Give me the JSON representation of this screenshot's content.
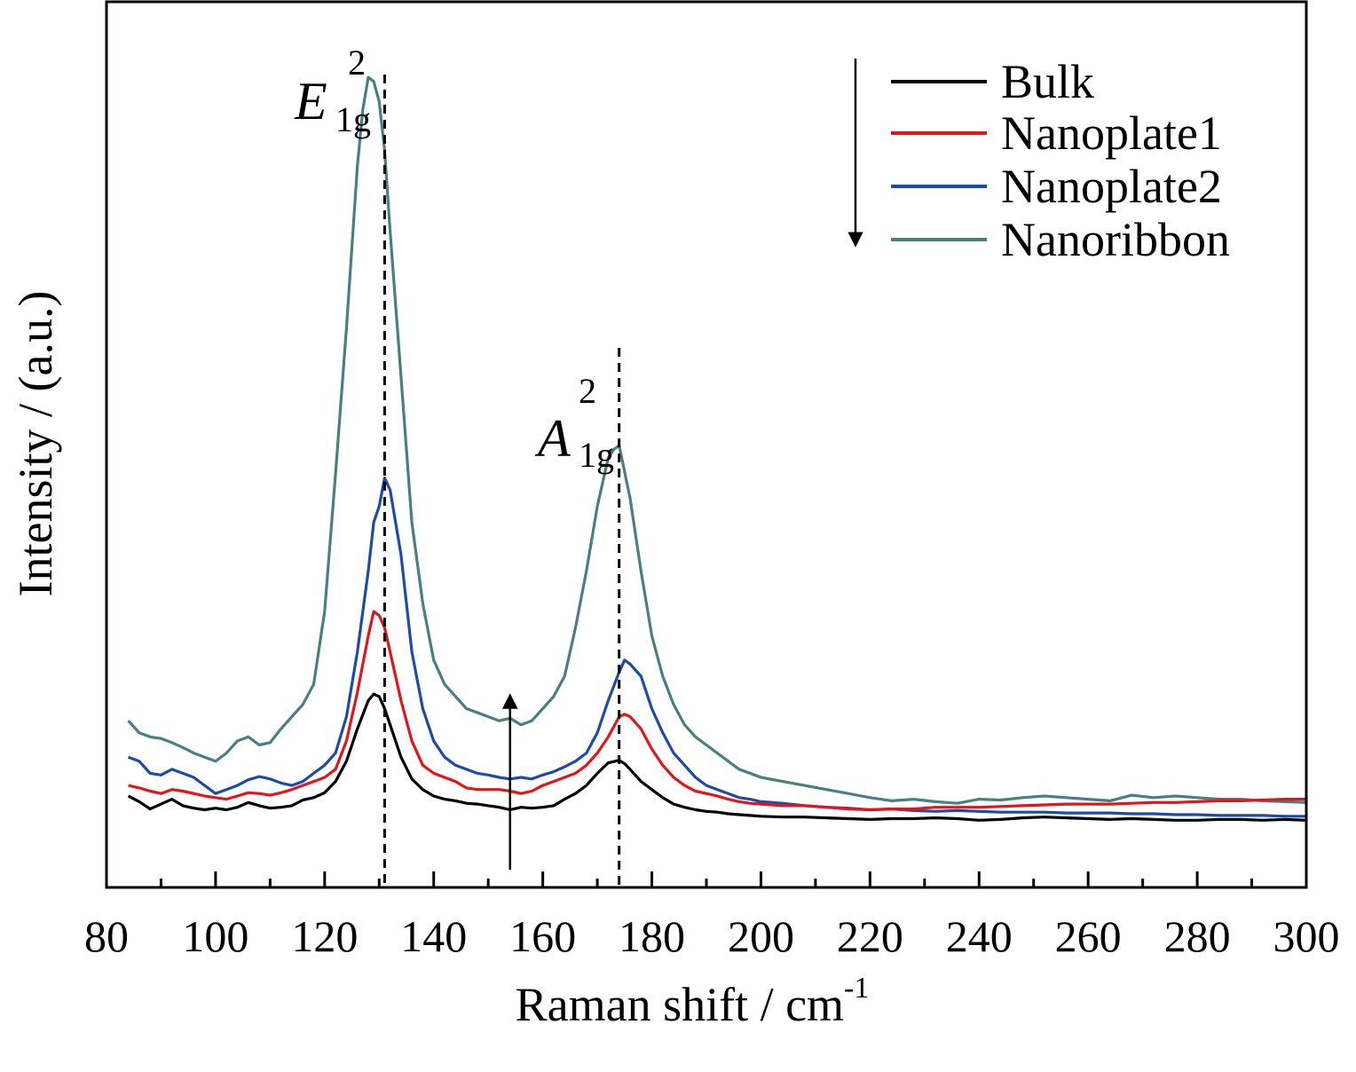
{
  "chart_data": {
    "type": "line",
    "xlabel": "Raman shift / cm",
    "xlabel_superscript": "-1",
    "ylabel": "Intensity / (a.u.)",
    "xlim": [
      80,
      300
    ],
    "ylim": [
      0,
      100
    ],
    "x_ticks": [
      80,
      100,
      120,
      140,
      160,
      180,
      200,
      220,
      240,
      260,
      280,
      300
    ],
    "y_ticks_shown": false,
    "grid": false,
    "legend_position": "top-right",
    "series": [
      {
        "name": "Bulk",
        "color": "#000000",
        "x": [
          84,
          86,
          88,
          90,
          92,
          94,
          96,
          98,
          100,
          102,
          104,
          106,
          108,
          110,
          112,
          114,
          116,
          118,
          120,
          122,
          124,
          126,
          128,
          129,
          130,
          131,
          132,
          134,
          136,
          138,
          140,
          142,
          144,
          146,
          148,
          150,
          152,
          154,
          156,
          158,
          160,
          162,
          164,
          166,
          168,
          170,
          172,
          174,
          175,
          176,
          178,
          180,
          182,
          184,
          186,
          188,
          190,
          192,
          194,
          196,
          198,
          200,
          204,
          208,
          212,
          216,
          220,
          224,
          228,
          232,
          236,
          240,
          244,
          248,
          252,
          256,
          260,
          264,
          268,
          272,
          276,
          280,
          284,
          288,
          292,
          296,
          300
        ],
        "y": [
          10.2,
          9.5,
          8.6,
          9.2,
          9.8,
          9.0,
          8.7,
          8.5,
          8.7,
          8.5,
          8.8,
          9.4,
          9.0,
          8.7,
          8.8,
          9.0,
          9.7,
          10.0,
          10.6,
          12.0,
          14.5,
          18.5,
          22.0,
          22.8,
          22.5,
          21.0,
          19.0,
          15.0,
          12.3,
          11.0,
          10.2,
          9.8,
          9.6,
          9.3,
          9.2,
          9.0,
          8.8,
          8.5,
          8.8,
          8.7,
          8.8,
          9.0,
          9.8,
          10.5,
          11.5,
          13.0,
          14.3,
          14.6,
          14.2,
          13.5,
          12.0,
          11.0,
          10.0,
          9.2,
          8.8,
          8.5,
          8.3,
          8.2,
          8.0,
          7.9,
          7.8,
          7.7,
          7.6,
          7.6,
          7.5,
          7.4,
          7.3,
          7.4,
          7.4,
          7.5,
          7.4,
          7.2,
          7.3,
          7.5,
          7.6,
          7.5,
          7.4,
          7.3,
          7.4,
          7.3,
          7.2,
          7.2,
          7.3,
          7.3,
          7.2,
          7.3,
          7.2
        ]
      },
      {
        "name": "Nanoplate1",
        "color": "#e0161b",
        "x": [
          84,
          86,
          88,
          90,
          92,
          94,
          96,
          98,
          100,
          102,
          104,
          106,
          108,
          110,
          112,
          114,
          116,
          118,
          120,
          122,
          124,
          126,
          128,
          129,
          130,
          131,
          132,
          134,
          136,
          138,
          140,
          142,
          144,
          146,
          148,
          150,
          152,
          154,
          156,
          158,
          160,
          162,
          164,
          166,
          168,
          170,
          172,
          174,
          175,
          176,
          178,
          180,
          182,
          184,
          186,
          188,
          190,
          192,
          194,
          196,
          198,
          200,
          204,
          208,
          212,
          216,
          220,
          224,
          228,
          232,
          236,
          240,
          244,
          248,
          252,
          256,
          260,
          264,
          268,
          272,
          276,
          280,
          284,
          288,
          292,
          296,
          300
        ],
        "y": [
          11.5,
          11.2,
          10.8,
          10.5,
          11.0,
          10.8,
          10.5,
          10.2,
          10.0,
          9.8,
          10.2,
          10.6,
          10.5,
          10.3,
          10.6,
          11.0,
          11.5,
          12.0,
          12.5,
          13.5,
          17.0,
          23.0,
          30.0,
          33.0,
          32.5,
          31.0,
          28.0,
          22.0,
          17.0,
          14.0,
          13.0,
          12.5,
          12.0,
          11.2,
          11.0,
          11.0,
          11.0,
          10.8,
          10.5,
          10.8,
          11.5,
          12.0,
          12.5,
          13.0,
          14.0,
          15.5,
          17.5,
          20.0,
          20.3,
          20.0,
          18.5,
          16.0,
          14.0,
          12.5,
          11.5,
          10.8,
          10.5,
          10.2,
          9.8,
          9.5,
          9.3,
          9.2,
          9.0,
          9.0,
          8.8,
          8.6,
          8.5,
          8.6,
          8.6,
          8.8,
          8.8,
          8.8,
          8.9,
          9.0,
          9.1,
          9.2,
          9.2,
          9.2,
          9.3,
          9.4,
          9.4,
          9.5,
          9.6,
          9.6,
          9.7,
          9.8,
          9.8
        ]
      },
      {
        "name": "Nanoplate2",
        "color": "#1f4aa5",
        "x": [
          84,
          86,
          88,
          90,
          92,
          94,
          96,
          98,
          100,
          102,
          104,
          106,
          108,
          110,
          112,
          114,
          116,
          118,
          120,
          122,
          124,
          126,
          128,
          129,
          130,
          131,
          132,
          134,
          136,
          138,
          140,
          142,
          144,
          146,
          148,
          150,
          152,
          154,
          156,
          158,
          160,
          162,
          164,
          166,
          168,
          170,
          172,
          174,
          175,
          176,
          178,
          180,
          182,
          184,
          186,
          188,
          190,
          192,
          194,
          196,
          198,
          200,
          204,
          208,
          212,
          216,
          220,
          224,
          228,
          232,
          236,
          240,
          244,
          248,
          252,
          256,
          260,
          264,
          268,
          272,
          276,
          280,
          284,
          288,
          292,
          296,
          300
        ],
        "y": [
          15.0,
          14.5,
          13.0,
          12.8,
          13.5,
          13.0,
          12.5,
          11.5,
          10.5,
          11.0,
          11.5,
          12.2,
          12.6,
          12.3,
          11.8,
          11.5,
          12.0,
          13.0,
          14.0,
          15.5,
          20.0,
          28.0,
          38.0,
          44.0,
          46.0,
          49.5,
          48.0,
          40.0,
          28.0,
          21.0,
          17.0,
          15.0,
          14.0,
          13.5,
          13.0,
          12.8,
          12.5,
          12.3,
          12.5,
          12.3,
          12.8,
          13.2,
          13.8,
          14.5,
          15.5,
          18.0,
          22.0,
          25.5,
          27.0,
          26.5,
          25.0,
          21.0,
          18.0,
          15.5,
          14.0,
          12.5,
          11.5,
          11.0,
          10.5,
          10.0,
          9.8,
          9.5,
          9.3,
          9.0,
          8.8,
          8.7,
          8.5,
          8.6,
          8.4,
          8.3,
          8.4,
          8.3,
          8.2,
          8.2,
          8.2,
          8.1,
          8.1,
          8.1,
          8.0,
          8.0,
          7.9,
          7.9,
          7.8,
          7.8,
          7.8,
          7.7,
          7.7
        ]
      },
      {
        "name": "Nanoribbon",
        "color": "#4a7f80",
        "x": [
          84,
          86,
          88,
          90,
          92,
          94,
          96,
          98,
          100,
          102,
          104,
          106,
          108,
          110,
          112,
          114,
          116,
          118,
          120,
          122,
          124,
          126,
          127,
          128,
          129,
          130,
          131,
          132,
          134,
          136,
          138,
          140,
          142,
          144,
          146,
          148,
          150,
          152,
          154,
          156,
          158,
          160,
          162,
          164,
          166,
          168,
          170,
          172,
          173,
          174,
          176,
          178,
          180,
          182,
          184,
          186,
          188,
          190,
          192,
          194,
          196,
          198,
          200,
          204,
          208,
          212,
          216,
          220,
          224,
          228,
          232,
          236,
          240,
          244,
          248,
          252,
          256,
          260,
          264,
          268,
          272,
          276,
          280,
          284,
          288,
          292,
          296,
          300
        ],
        "y": [
          19.5,
          18.0,
          17.5,
          17.3,
          16.8,
          16.2,
          15.5,
          15.0,
          14.5,
          15.5,
          17.0,
          17.5,
          16.5,
          16.8,
          18.5,
          20.0,
          21.5,
          24.0,
          33.0,
          50.0,
          68.0,
          88.0,
          95.0,
          99.0,
          98.5,
          96.0,
          90.0,
          80.0,
          62.0,
          44.0,
          34.0,
          27.0,
          24.0,
          22.5,
          21.0,
          20.5,
          20.0,
          19.5,
          19.8,
          19.0,
          19.5,
          21.0,
          22.5,
          25.0,
          31.0,
          38.0,
          46.0,
          52.0,
          53.0,
          53.5,
          47.0,
          38.0,
          30.0,
          25.0,
          21.5,
          19.0,
          17.5,
          16.5,
          15.5,
          14.5,
          13.5,
          13.0,
          12.5,
          12.0,
          11.5,
          11.0,
          10.5,
          10.0,
          9.6,
          9.8,
          9.5,
          9.3,
          9.8,
          9.7,
          10.0,
          10.2,
          10.0,
          9.8,
          9.6,
          10.3,
          10.0,
          10.2,
          10.0,
          9.8,
          9.8,
          9.6,
          9.5,
          9.4
        ]
      }
    ],
    "annotations": [
      {
        "label_main": "E",
        "label_sub": "1g",
        "label_sup": "2",
        "x": 131,
        "style": "dashed-vertical"
      },
      {
        "label_main": "A",
        "label_sub": "1g",
        "label_sup": "2",
        "x": 174,
        "style": "dashed-vertical"
      }
    ],
    "arrows": [
      {
        "direction": "up",
        "x": 154
      },
      {
        "direction": "down",
        "note": "legend-side"
      }
    ]
  }
}
